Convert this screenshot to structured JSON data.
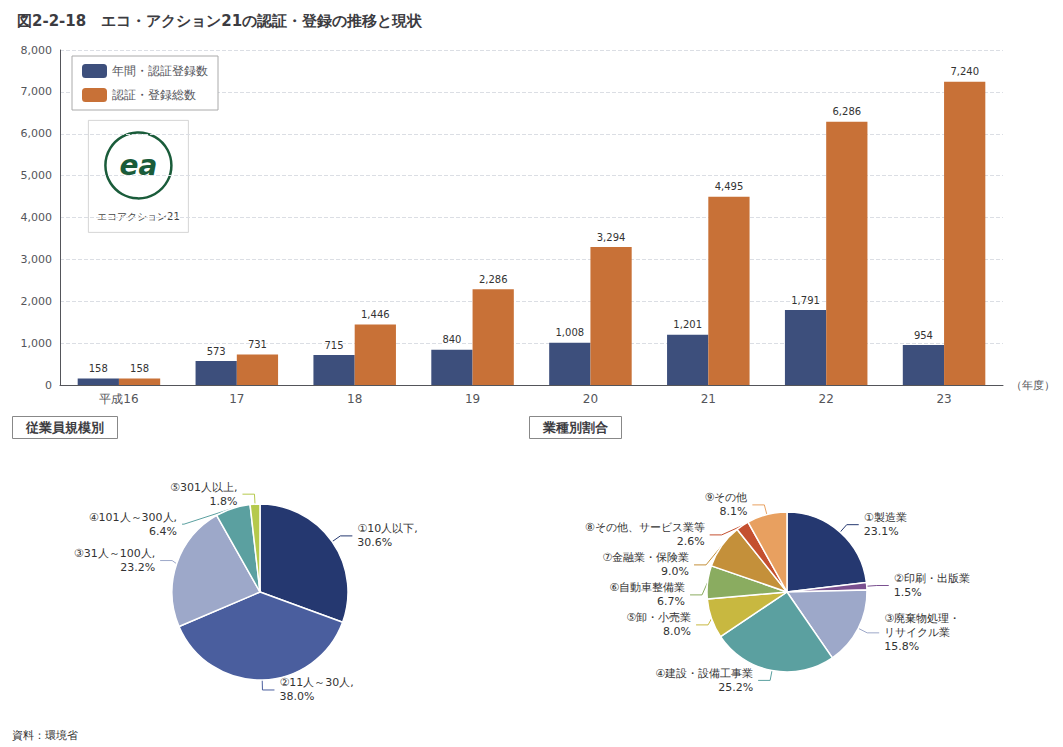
{
  "chart_data": [
    {
      "type": "bar",
      "title": "図2-2-18　エコ・アクション21の認証・登録の推移と現状",
      "xlabel": "（年度）",
      "categories": [
        "平成16",
        "17",
        "18",
        "19",
        "20",
        "21",
        "22",
        "23"
      ],
      "series": [
        {
          "name": "年間・認証登録数",
          "color": "#3d4f7c",
          "values": [
            158,
            573,
            715,
            840,
            1008,
            1201,
            1791,
            954
          ],
          "value_labels": [
            "158",
            "573",
            "715",
            "840",
            "1,008",
            "1,201",
            "1,791",
            "954"
          ]
        },
        {
          "name": "認証・登録総数",
          "color": "#c87137",
          "values": [
            158,
            731,
            1446,
            2286,
            3294,
            4495,
            6286,
            7240
          ],
          "value_labels": [
            "158",
            "731",
            "1,446",
            "2,286",
            "3,294",
            "4,495",
            "6,286",
            "7,240"
          ]
        }
      ],
      "ylim": [
        0,
        8000
      ],
      "yticks": [
        0,
        {
          "value": 1000,
          "label": "1,000"
        },
        {
          "value": 2000,
          "label": "2,000"
        },
        {
          "value": 3000,
          "label": "3,000"
        },
        {
          "value": 4000,
          "label": "4,000"
        },
        {
          "value": 5000,
          "label": "5,000"
        },
        {
          "value": 6000,
          "label": "6,000"
        },
        {
          "value": 7000,
          "label": "7,000"
        },
        {
          "value": 8000,
          "label": "8,000"
        }
      ],
      "grid": true,
      "legend": "upper left",
      "data_labels": true,
      "annotations": [
        "ea",
        "エコアクション21",
        "資料：環境省"
      ]
    },
    {
      "type": "pie",
      "title": "従業員規模別",
      "categories": [
        "①10人以下,",
        "②11人～30人,",
        "③31人～100人,",
        "④101人～300人,",
        "⑤301人以上,"
      ],
      "values": [
        30.6,
        38.0,
        23.2,
        6.4,
        1.8
      ],
      "value_labels": [
        "30.6%",
        "38.0%",
        "23.2%",
        "6.4%",
        "1.8%"
      ],
      "colors": [
        "#253870",
        "#4a5e9e",
        "#9da8c9",
        "#5ba0a0",
        "#b5c94c"
      ],
      "data_labels": true
    },
    {
      "type": "pie",
      "title": "業種別割合",
      "categories": [
        "①製造業",
        "②印刷・出版業",
        "③廃棄物処理・\nリサイクル業",
        "④建設・設備工事業",
        "⑤卸・小売業",
        "⑥自動車整備業",
        "⑦金融業・保険業",
        "⑧その他、サービス業等",
        "⑨その他"
      ],
      "values": [
        23.1,
        1.5,
        15.8,
        25.2,
        8.0,
        6.7,
        9.0,
        2.6,
        8.1
      ],
      "value_labels": [
        "23.1%",
        "1.5%",
        "15.8%",
        "25.2%",
        "8.0%",
        "6.7%",
        "9.0%",
        "2.6%",
        "8.1%"
      ],
      "colors": [
        "#253870",
        "#7a5090",
        "#9da8c9",
        "#5ba0a0",
        "#c8b840",
        "#8aac60",
        "#c4903a",
        "#c45030",
        "#e8a060"
      ],
      "data_labels": true
    }
  ]
}
